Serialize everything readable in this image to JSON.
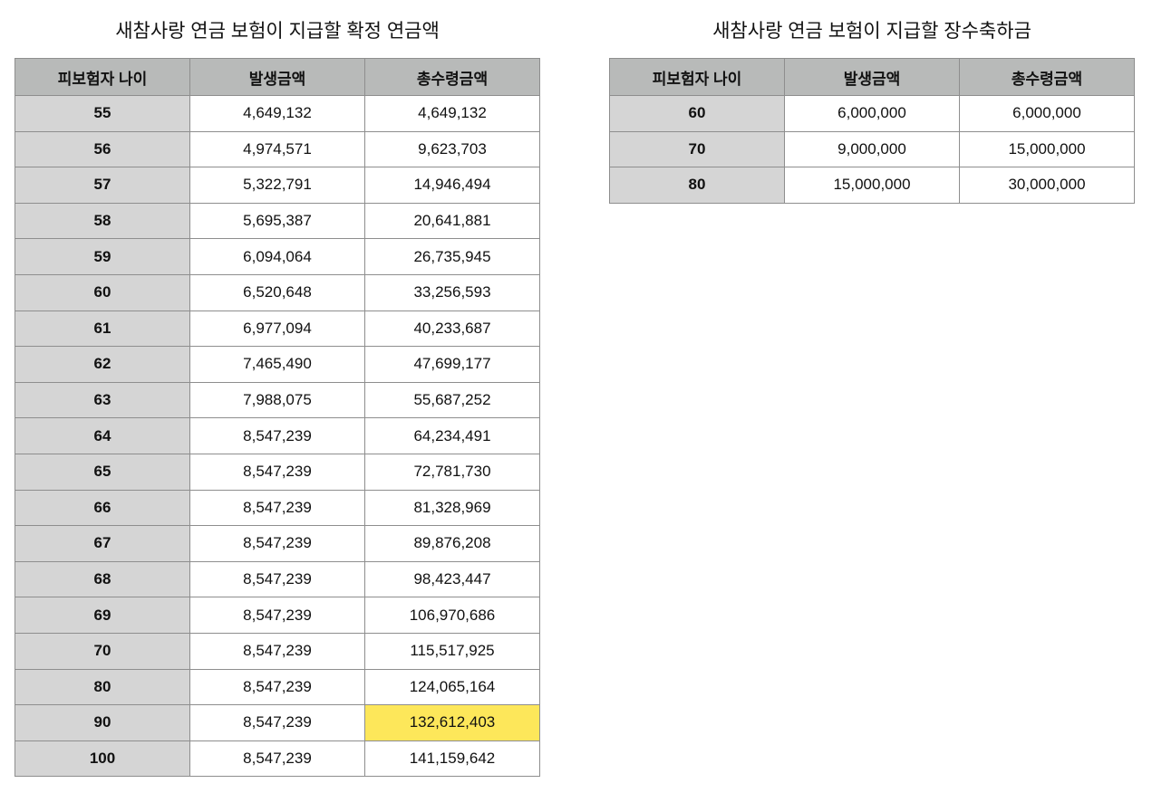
{
  "guaranteed_table": {
    "title": "새참사랑 연금 보험이 지급할 확정 연금액",
    "headers": [
      "피보험자 나이",
      "발생금액",
      "총수령금액"
    ],
    "rows": [
      {
        "age": "55",
        "amount": "4,649,132",
        "total": "4,649,132"
      },
      {
        "age": "56",
        "amount": "4,974,571",
        "total": "9,623,703"
      },
      {
        "age": "57",
        "amount": "5,322,791",
        "total": "14,946,494"
      },
      {
        "age": "58",
        "amount": "5,695,387",
        "total": "20,641,881"
      },
      {
        "age": "59",
        "amount": "6,094,064",
        "total": "26,735,945"
      },
      {
        "age": "60",
        "amount": "6,520,648",
        "total": "33,256,593"
      },
      {
        "age": "61",
        "amount": "6,977,094",
        "total": "40,233,687"
      },
      {
        "age": "62",
        "amount": "7,465,490",
        "total": "47,699,177"
      },
      {
        "age": "63",
        "amount": "7,988,075",
        "total": "55,687,252"
      },
      {
        "age": "64",
        "amount": "8,547,239",
        "total": "64,234,491"
      },
      {
        "age": "65",
        "amount": "8,547,239",
        "total": "72,781,730"
      },
      {
        "age": "66",
        "amount": "8,547,239",
        "total": "81,328,969"
      },
      {
        "age": "67",
        "amount": "8,547,239",
        "total": "89,876,208"
      },
      {
        "age": "68",
        "amount": "8,547,239",
        "total": "98,423,447"
      },
      {
        "age": "69",
        "amount": "8,547,239",
        "total": "106,970,686"
      },
      {
        "age": "70",
        "amount": "8,547,239",
        "total": "115,517,925"
      },
      {
        "age": "80",
        "amount": "8,547,239",
        "total": "124,065,164"
      },
      {
        "age": "90",
        "amount": "8,547,239",
        "total": "132,612,403"
      },
      {
        "age": "100",
        "amount": "8,547,239",
        "total": "141,159,642"
      }
    ],
    "highlighted_total_age": "90",
    "highlight_color": "#fde75a"
  },
  "longevity_table": {
    "title": "새참사랑 연금 보험이 지급할 장수축하금",
    "headers": [
      "피보험자 나이",
      "발생금액",
      "총수령금액"
    ],
    "rows": [
      {
        "age": "60",
        "amount": "6,000,000",
        "total": "6,000,000"
      },
      {
        "age": "70",
        "amount": "9,000,000",
        "total": "15,000,000"
      },
      {
        "age": "80",
        "amount": "15,000,000",
        "total": "30,000,000"
      }
    ]
  },
  "colors": {
    "header_bg": "#b8bab9",
    "age_cell_bg": "#d5d5d5",
    "border": "#8e8e8e"
  }
}
